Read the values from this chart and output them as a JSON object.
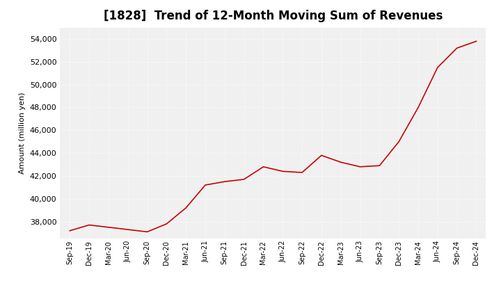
{
  "title": "[1828]  Trend of 12-Month Moving Sum of Revenues",
  "ylabel": "Amount (million yen)",
  "line_color": "#cc0000",
  "background_color": "#ffffff",
  "plot_bg_color": "#f0f0f0",
  "grid_color": "#ffffff",
  "ylim": [
    36500,
    55000
  ],
  "yticks": [
    38000,
    40000,
    42000,
    44000,
    46000,
    48000,
    50000,
    52000,
    54000
  ],
  "x_labels": [
    "Sep-19",
    "Dec-19",
    "Mar-20",
    "Jun-20",
    "Sep-20",
    "Dec-20",
    "Mar-21",
    "Jun-21",
    "Sep-21",
    "Dec-21",
    "Mar-22",
    "Jun-22",
    "Sep-22",
    "Dec-22",
    "Mar-23",
    "Jun-23",
    "Sep-23",
    "Dec-23",
    "Mar-24",
    "Jun-24",
    "Sep-24",
    "Dec-24"
  ],
  "values": [
    37200,
    37700,
    37500,
    37300,
    37100,
    37800,
    39200,
    41200,
    41500,
    41700,
    42800,
    42400,
    42300,
    43800,
    43200,
    42800,
    42900,
    45000,
    48000,
    51500,
    53200,
    53800
  ],
  "title_fontsize": 12,
  "ylabel_fontsize": 8,
  "ytick_fontsize": 8,
  "xtick_fontsize": 7
}
